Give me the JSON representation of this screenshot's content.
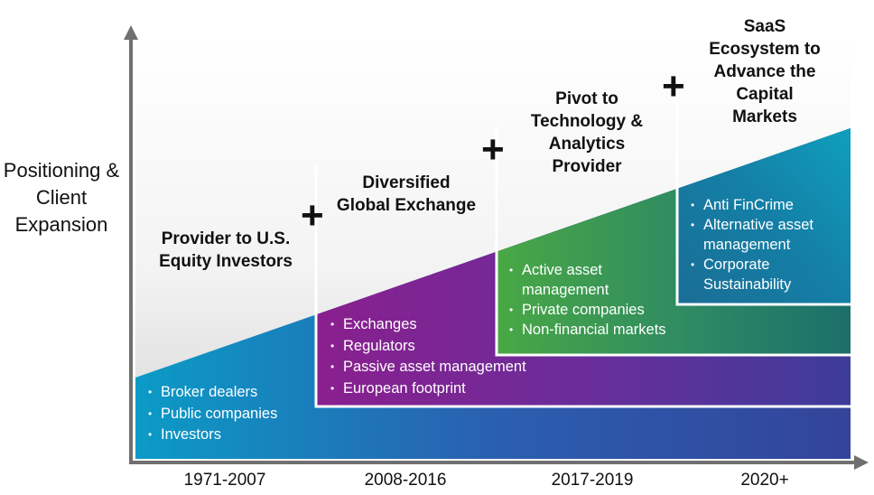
{
  "y_axis_label": "Positioning & Client Expansion",
  "stages": [
    {
      "title": "Provider to U.S. Equity Investors",
      "period": "1971-2007",
      "items": [
        "Broker dealers",
        "Public companies",
        "Investors"
      ]
    },
    {
      "title": "Diversified Global Exchange",
      "period": "2008-2016",
      "items": [
        "Exchanges",
        "Regulators",
        "Passive asset management",
        "European footprint"
      ]
    },
    {
      "title": "Pivot to Technology & Analytics Provider",
      "period": "2017-2019",
      "items": [
        "Active asset management",
        "Private companies",
        "Non-financial markets"
      ]
    },
    {
      "title": "SaaS Ecosystem to Advance the Capital Markets",
      "period": "2020+",
      "items": [
        "Anti FinCrime",
        "Alternative asset management",
        "Corporate Sustainability"
      ]
    }
  ],
  "plus_symbol": "+",
  "colors": {
    "stage1": [
      "#0b9bc6",
      "#2a5fb0",
      "#33449a"
    ],
    "stage2": [
      "#8a1f8e",
      "#6a2d9a",
      "#3d3c99"
    ],
    "stage3": [
      "#49a844",
      "#2e8a63",
      "#1c6f6a"
    ],
    "stage4": [
      "#1a6d95",
      "#147fa6",
      "#0fa1bf"
    ]
  }
}
